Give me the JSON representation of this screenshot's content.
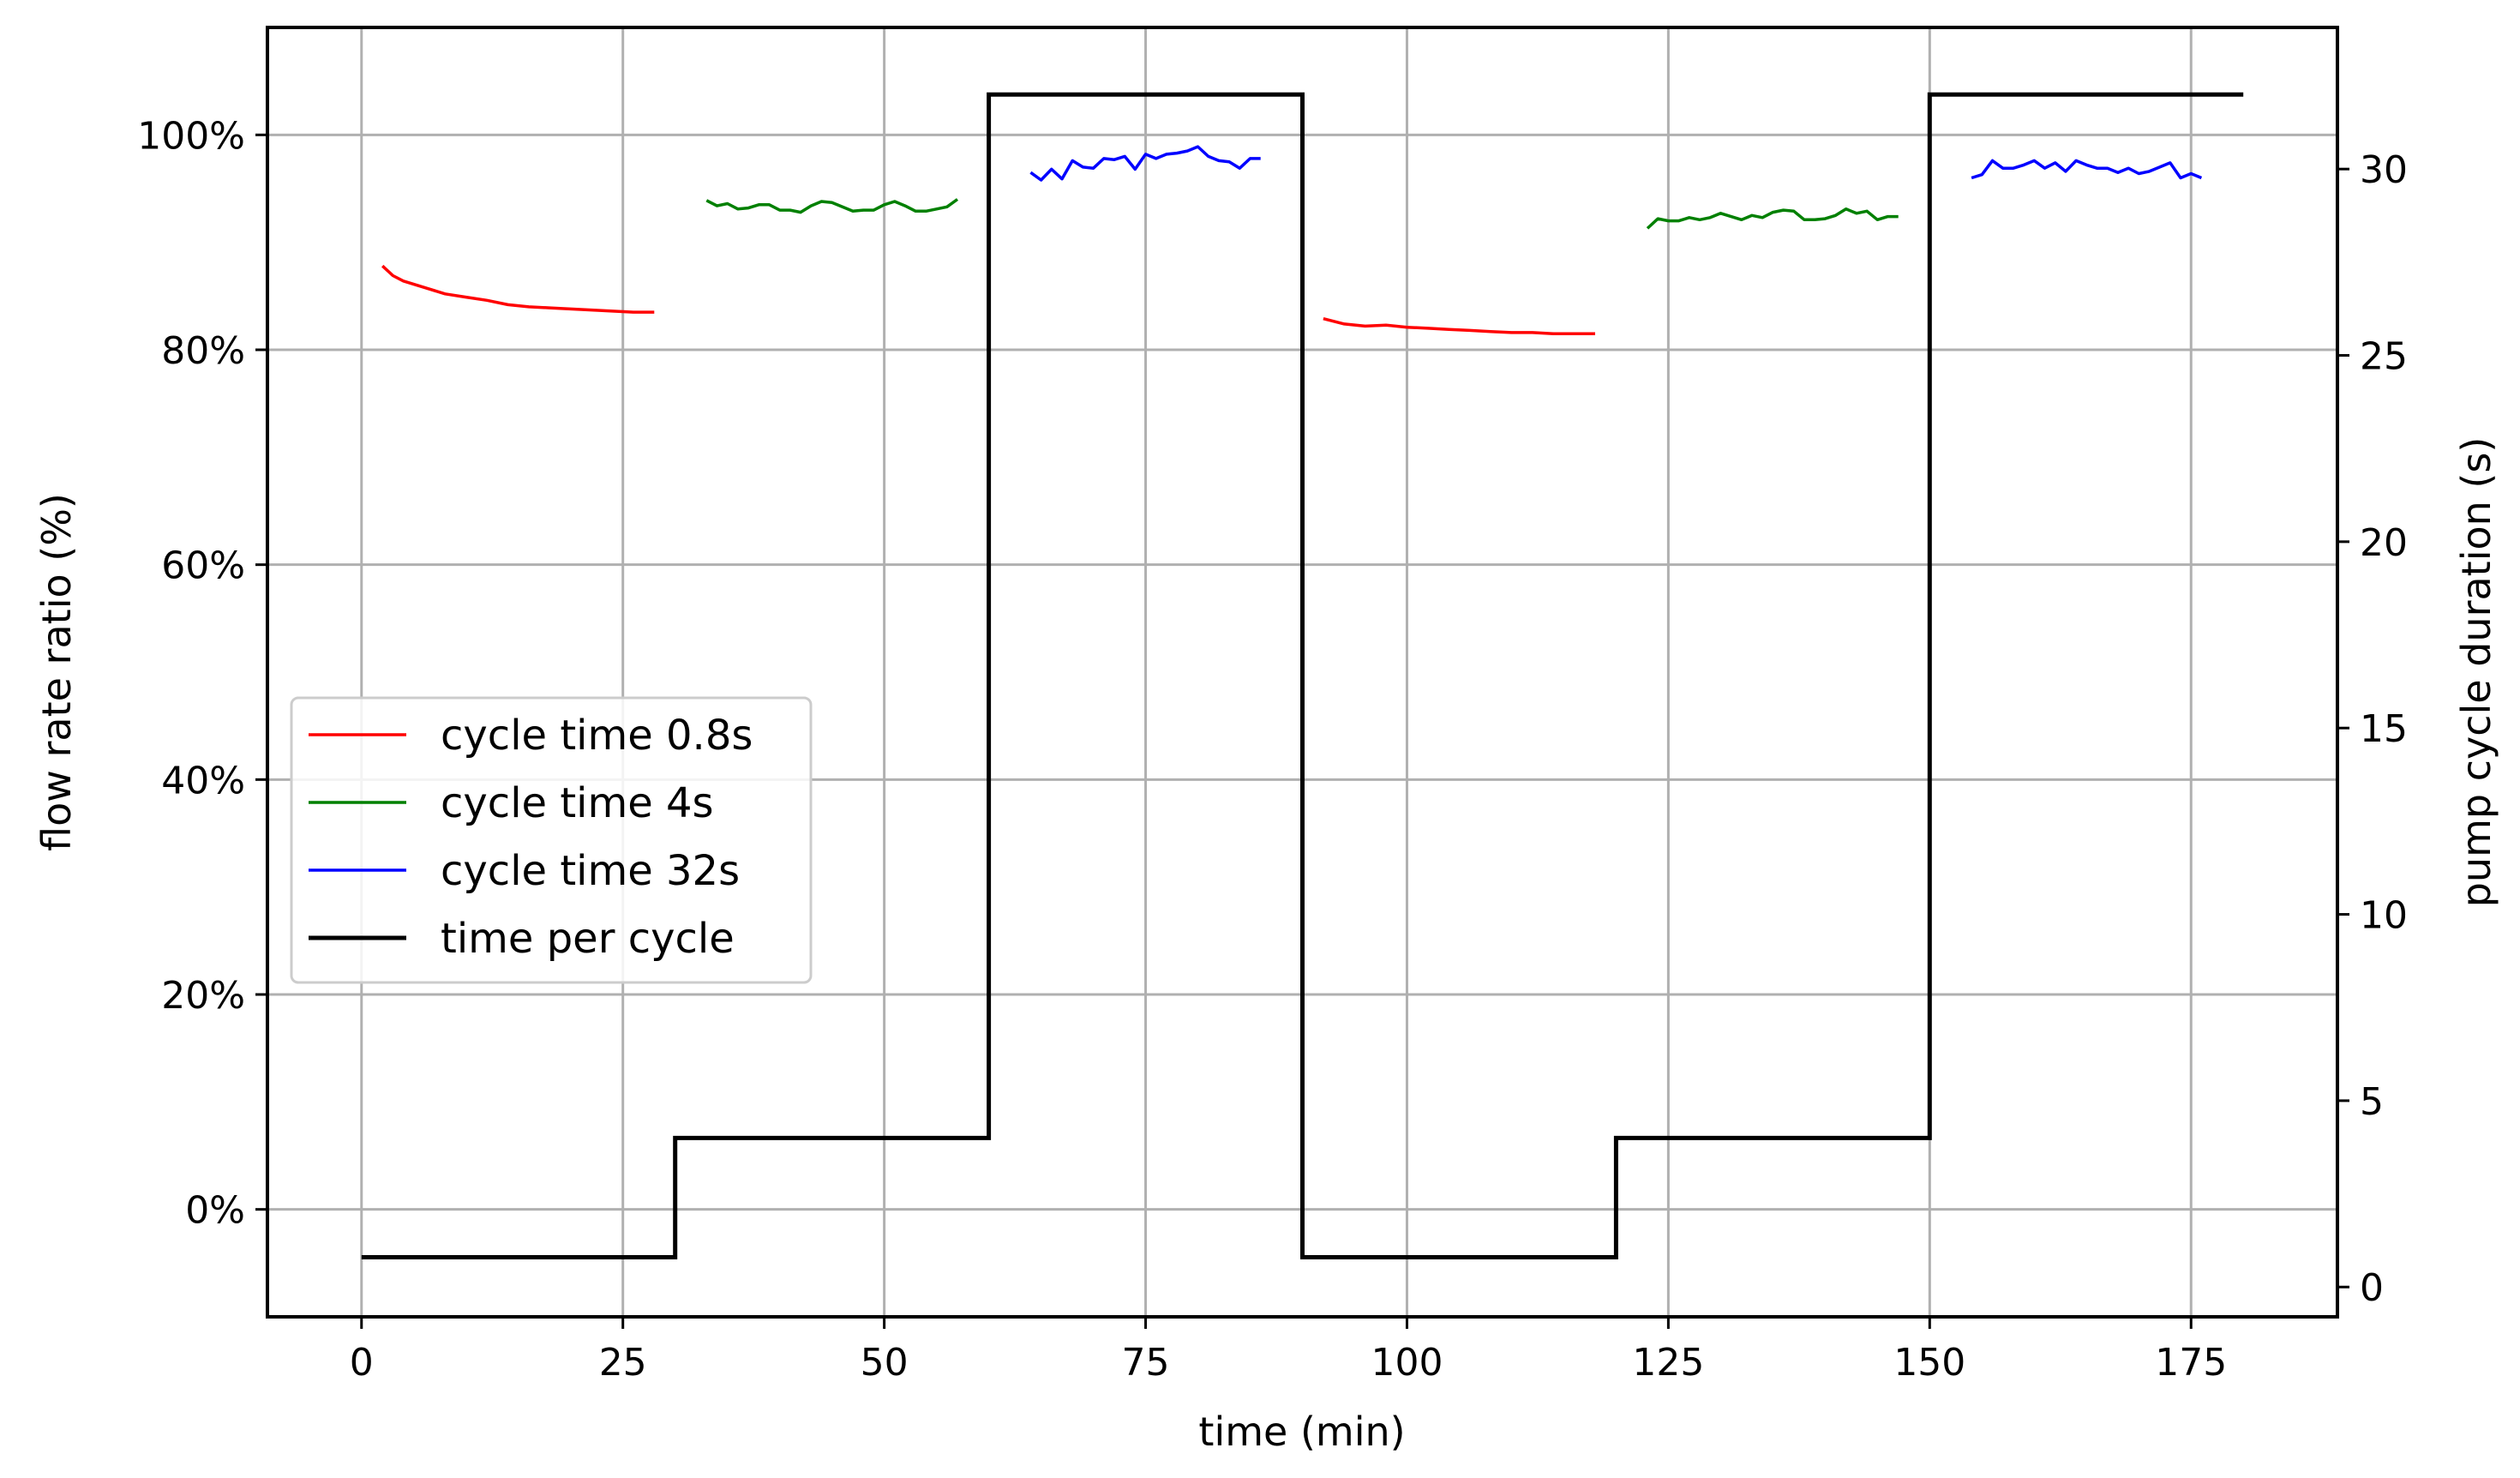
{
  "chart_data": {
    "type": "line",
    "xlabel": "time (min)",
    "ylabel": "flow rate ratio (%)",
    "y2label": "pump cycle duration (s)",
    "xlim": [
      -9,
      189
    ],
    "ylim": [
      -10,
      110
    ],
    "y2lim": [
      -0.8,
      33.8
    ],
    "xticks": [
      0,
      25,
      50,
      75,
      100,
      125,
      150,
      175
    ],
    "xtick_labels": [
      "0",
      "25",
      "50",
      "75",
      "100",
      "125",
      "150",
      "175"
    ],
    "yticks": [
      0,
      20,
      40,
      60,
      80,
      100
    ],
    "ytick_labels": [
      "0%",
      "20%",
      "40%",
      "60%",
      "80%",
      "100%"
    ],
    "y2ticks": [
      0,
      5,
      10,
      15,
      20,
      25,
      30
    ],
    "y2tick_labels": [
      "0",
      "5",
      "10",
      "15",
      "20",
      "25",
      "30"
    ],
    "grid": true,
    "legend_position": "center-left",
    "legend_entries": [
      "cycle time 0.8s",
      "cycle time 4s",
      "cycle time 32s",
      "time per cycle"
    ],
    "series": [
      {
        "name": "cycle time 0.8s",
        "color": "#ff0000",
        "axis": "left",
        "x": [
          2,
          3,
          4,
          6,
          8,
          10,
          12,
          14,
          16,
          18,
          20,
          22,
          24,
          26,
          28,
          92,
          94,
          96,
          98,
          100,
          102,
          104,
          106,
          108,
          110,
          112,
          114,
          116,
          118
        ],
        "y": [
          87.8,
          86.9,
          86.4,
          85.8,
          85.2,
          84.9,
          84.6,
          84.2,
          84.0,
          83.9,
          83.8,
          83.7,
          83.6,
          83.5,
          83.5,
          82.9,
          82.4,
          82.2,
          82.3,
          82.1,
          82.0,
          81.9,
          81.8,
          81.7,
          81.6,
          81.6,
          81.5,
          81.5,
          81.5
        ]
      },
      {
        "name": "cycle time 4s",
        "color": "#008000",
        "axis": "left",
        "x": [
          33,
          34,
          35,
          36,
          37,
          38,
          39,
          40,
          41,
          42,
          43,
          44,
          45,
          46,
          47,
          48,
          49,
          50,
          51,
          52,
          53,
          54,
          55,
          56,
          57,
          123,
          124,
          125,
          126,
          127,
          128,
          129,
          130,
          131,
          132,
          133,
          134,
          135,
          136,
          137,
          138,
          139,
          140,
          141,
          142,
          143,
          144,
          145,
          146,
          147
        ],
        "y": [
          93.9,
          93.4,
          93.6,
          93.1,
          93.2,
          93.5,
          93.5,
          93.0,
          93.0,
          92.8,
          93.4,
          93.8,
          93.7,
          93.3,
          92.9,
          93.0,
          93.0,
          93.5,
          93.8,
          93.4,
          92.9,
          92.9,
          93.1,
          93.3,
          94.0,
          91.3,
          92.2,
          92.0,
          92.0,
          92.3,
          92.1,
          92.3,
          92.7,
          92.4,
          92.1,
          92.5,
          92.3,
          92.8,
          93.0,
          92.9,
          92.1,
          92.1,
          92.2,
          92.5,
          93.1,
          92.7,
          92.9,
          92.1,
          92.4,
          92.4
        ]
      },
      {
        "name": "cycle time 32s",
        "color": "#0000ff",
        "axis": "left",
        "x": [
          64,
          65,
          66,
          67,
          68,
          69,
          70,
          71,
          72,
          73,
          74,
          75,
          76,
          77,
          78,
          79,
          80,
          81,
          82,
          83,
          84,
          85,
          86,
          154,
          155,
          156,
          157,
          158,
          159,
          160,
          161,
          162,
          163,
          164,
          165,
          166,
          167,
          168,
          169,
          170,
          171,
          172,
          173,
          174,
          175,
          176
        ],
        "y": [
          96.5,
          95.8,
          96.8,
          95.9,
          97.6,
          97.0,
          96.9,
          97.8,
          97.7,
          98.0,
          96.8,
          98.2,
          97.8,
          98.2,
          98.3,
          98.5,
          98.9,
          98.0,
          97.6,
          97.5,
          96.9,
          97.8,
          97.8,
          96.0,
          96.3,
          97.6,
          96.9,
          96.9,
          97.2,
          97.6,
          96.9,
          97.4,
          96.6,
          97.6,
          97.2,
          96.9,
          96.9,
          96.5,
          96.9,
          96.4,
          96.6,
          97.0,
          97.4,
          96.0,
          96.4,
          96.0
        ]
      },
      {
        "name": "time per cycle",
        "color": "#000000",
        "axis": "right",
        "drawstyle": "steps-post",
        "x": [
          0,
          30,
          60,
          90,
          120,
          150,
          180
        ],
        "y": [
          0.8,
          4,
          32,
          0.8,
          4,
          32,
          32
        ]
      }
    ]
  }
}
